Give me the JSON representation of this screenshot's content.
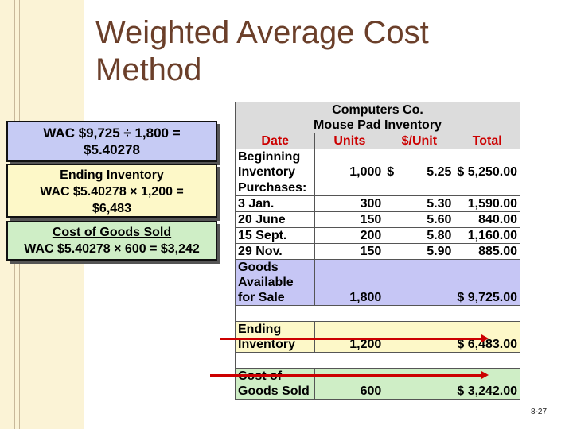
{
  "title": "Weighted Average Cost Method",
  "boxes": {
    "wac": {
      "line1": "WAC  $9,725 ÷ 1,800 =",
      "line2": "$5.40278"
    },
    "ending": {
      "heading": "Ending Inventory",
      "line1": "WAC  $5.40278 × 1,200 =",
      "line2": "$6,483"
    },
    "cogs": {
      "heading": "Cost of Goods Sold",
      "line1": "WAC  $5.40278 × 600 = $3,242"
    }
  },
  "table": {
    "company": "Computers Co.",
    "subtitle": "Mouse Pad Inventory",
    "headers": [
      "Date",
      "Units",
      "$/Unit",
      "Total"
    ],
    "beginning": {
      "label1": "Beginning",
      "label2": "Inventory",
      "units": "1,000",
      "dollar": "$",
      "unit_cost": "5.25",
      "total": "$  5,250.00"
    },
    "purchases_label": "Purchases:",
    "purchases": [
      {
        "date": "3 Jan.",
        "units": "300",
        "unit_cost": "5.30",
        "total": "1,590.00"
      },
      {
        "date": "20 June",
        "units": "150",
        "unit_cost": "5.60",
        "total": "840.00"
      },
      {
        "date": "15 Sept.",
        "units": "200",
        "unit_cost": "5.80",
        "total": "1,160.00"
      },
      {
        "date": "29 Nov.",
        "units": "150",
        "unit_cost": "5.90",
        "total": "885.00"
      }
    ],
    "available": {
      "label1": "Goods",
      "label2": "Available",
      "label3": "for Sale",
      "units": "1,800",
      "total": "$  9,725.00"
    },
    "ending": {
      "label1": "Ending",
      "label2": "Inventory",
      "units": "1,200",
      "total": "$  6,483.00"
    },
    "cogs": {
      "label1": "Cost of",
      "label2": "Goods Sold",
      "units": "600",
      "total": "$  3,242.00"
    }
  },
  "page_number": "8-27"
}
